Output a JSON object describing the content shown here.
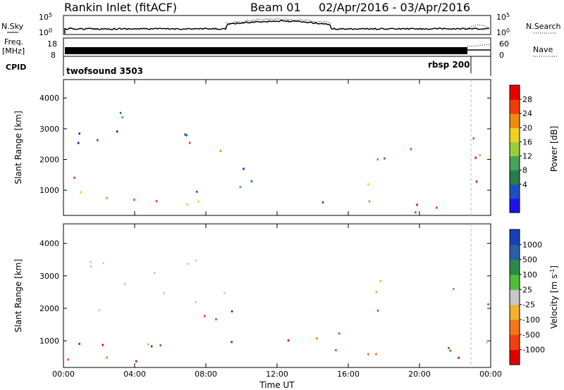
{
  "header": {
    "station": "Rankin Inlet (fitACF)",
    "beam": "Beam 01",
    "date_range": "02/Apr/2016 - 03/Apr/2016"
  },
  "top_panels": {
    "nsky_label": "N.Sky",
    "nsearch_label": "N.Search",
    "noise_ticks": [
      "10^5",
      "10^0"
    ],
    "freq_label": "Freq.",
    "freq_unit": "[MHz]",
    "freq_ticks": [
      "18",
      "8"
    ],
    "nave_label": "Nave",
    "nave_ticks": [
      "60",
      "0"
    ],
    "cpid_label": "CPID",
    "cpid_programs": [
      "twofsound 3503",
      "rbsp 200"
    ]
  },
  "chart_data": [
    {
      "type": "heatmap",
      "title": "",
      "xlabel": "",
      "ylabel": "Slant Range [km]",
      "xlim": [
        "00:00",
        "24:00"
      ],
      "ylim": [
        180,
        4600
      ],
      "x_ticks": [
        "00:00",
        "04:00",
        "08:00",
        "12:00",
        "16:00",
        "20:00",
        "00:00"
      ],
      "y_ticks": [
        1000,
        2000,
        3000,
        4000
      ],
      "colorbar": {
        "label": "Power [dB]",
        "ticks": [
          "28",
          "24",
          "20",
          "16",
          "12",
          "8",
          "4"
        ],
        "colors": [
          "#1a12f0",
          "#1f4fbf",
          "#2a7a4a",
          "#49a35a",
          "#9ccb3a",
          "#f0d020",
          "#f08a10",
          "#f03a0a",
          "#e60000"
        ]
      },
      "scatter_bands": [
        {
          "x0": 0.2,
          "x1": 6.2,
          "r0": 250,
          "r1": 1500,
          "level": "high"
        },
        {
          "x0": 6.2,
          "x1": 9.0,
          "r0": 300,
          "r1": 2600,
          "level": "mixed"
        },
        {
          "x0": 9.0,
          "x1": 12.5,
          "r0": 1100,
          "r1": 2200,
          "level": "low"
        },
        {
          "x0": 12.5,
          "x1": 15.5,
          "r0": 450,
          "r1": 1100,
          "level": "mixed"
        },
        {
          "x0": 15.5,
          "x1": 22.5,
          "r0": 300,
          "r1": 1300,
          "level": "high"
        },
        {
          "x0": 17.0,
          "x1": 19.5,
          "r0": 1500,
          "r1": 3000,
          "level": "mixed"
        },
        {
          "x0": 21.5,
          "x1": 24.0,
          "r0": 800,
          "r1": 2800,
          "level": "mixed"
        },
        {
          "x0": 0.2,
          "x1": 8.0,
          "r0": 2200,
          "r1": 3600,
          "level": "low"
        }
      ]
    },
    {
      "type": "heatmap",
      "title": "",
      "xlabel": "Time UT",
      "ylabel": "Slant Range [km]",
      "xlim": [
        "00:00",
        "24:00"
      ],
      "ylim": [
        180,
        4600
      ],
      "x_ticks": [
        "00:00",
        "04:00",
        "08:00",
        "12:00",
        "16:00",
        "20:00",
        "00:00"
      ],
      "y_ticks": [
        1000,
        2000,
        3000,
        4000
      ],
      "colorbar": {
        "label": "Velocity [m s^-1]",
        "ticks": [
          "1000",
          "500",
          "100",
          "25",
          "-25",
          "-100",
          "-500",
          "-1000"
        ],
        "colors": [
          "#e00000",
          "#f04010",
          "#f07818",
          "#f0b030",
          "#c8c8c8",
          "#4fbf3a",
          "#2e8a4a",
          "#2a5fa8",
          "#1a3fb8"
        ]
      },
      "scatter_bands": [
        {
          "x0": 0.2,
          "x1": 6.2,
          "r0": 300,
          "r1": 1800,
          "level": "negative"
        },
        {
          "x0": 3.5,
          "x1": 7.0,
          "r0": 800,
          "r1": 1500,
          "level": "positive"
        },
        {
          "x0": 6.2,
          "x1": 9.5,
          "r0": 300,
          "r1": 2600,
          "level": "mixed"
        },
        {
          "x0": 12.0,
          "x1": 22.5,
          "r0": 300,
          "r1": 1300,
          "level": "negative"
        },
        {
          "x0": 17.0,
          "x1": 19.5,
          "r0": 1500,
          "r1": 3100,
          "level": "negative"
        },
        {
          "x0": 21.0,
          "x1": 24.0,
          "r0": 800,
          "r1": 2800,
          "level": "mixed"
        },
        {
          "x0": 0.2,
          "x1": 8.0,
          "r0": 1800,
          "r1": 3600,
          "level": "zero"
        }
      ]
    }
  ]
}
